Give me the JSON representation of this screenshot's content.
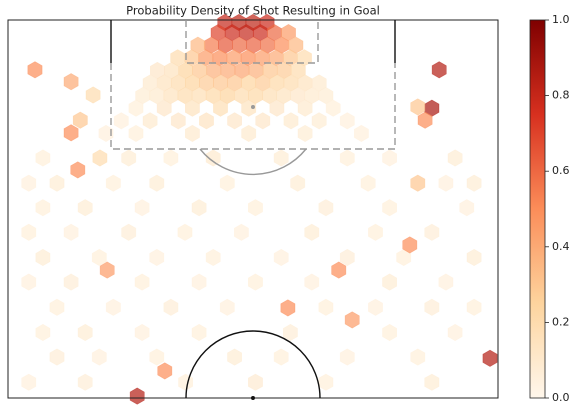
{
  "chart_data": {
    "type": "hexbin",
    "title": "Probability Density of Shot Resulting in Goal",
    "xlim": [
      0,
      80
    ],
    "ylim": [
      0,
      60
    ],
    "colorscale": [
      "#fff7ec",
      "#fdd49e",
      "#fc8d59",
      "#d7301f",
      "#7f0000"
    ],
    "clim": [
      0,
      1
    ],
    "cticks": [
      {
        "value": 0,
        "label": "0.0"
      },
      {
        "value": 0.2,
        "label": "0.2"
      },
      {
        "value": 0.4,
        "label": "0.4"
      },
      {
        "value": 0.6,
        "label": "0.6"
      },
      {
        "value": 0.8,
        "label": "0.8"
      },
      {
        "value": 1,
        "label": "1.0"
      }
    ],
    "cells": {
      "x": [
        35.4,
        37.7,
        40,
        42.3,
        34.3,
        36.6,
        38.9,
        41.2,
        43.5,
        45.8,
        33.2,
        35.5,
        37.8,
        40.1,
        42.4,
        44.7,
        47,
        31,
        30,
        32.3,
        34.6,
        36.9,
        39.2,
        41.5,
        43.8,
        46.1,
        48.4,
        27.7,
        29,
        31.3,
        33.6,
        35.9,
        38.2,
        40.5,
        42.8,
        45.1,
        47.4,
        26.7,
        24.4,
        25.5,
        27.8,
        30.1,
        32.4,
        34.7,
        37,
        39.3,
        41.6,
        43.9,
        46.2,
        48.5,
        23.2,
        50.8,
        22,
        24.3,
        26.6,
        28.9,
        31.2,
        33.5,
        35.8,
        38.1,
        40.4,
        42.7,
        45,
        47.3,
        49.6,
        51.9,
        20.9,
        25.5,
        30.1,
        34.7,
        39.3,
        43.9,
        48.5,
        53.1,
        18.5,
        23.2,
        27.8,
        32.4,
        37,
        41.6,
        46.2,
        50.8,
        55.4,
        16,
        20.9,
        30.1,
        39.3,
        48.5,
        57.7,
        5.7,
        19.7,
        26.6,
        33.5,
        44.6,
        55.4,
        62.3,
        73,
        3.4,
        8,
        17.2,
        24.3,
        35.8,
        47.3,
        58.8,
        71.5,
        76.1,
        5.7,
        12.6,
        21.9,
        31.2,
        40.4,
        51.9,
        62.3,
        74.9,
        3.4,
        10.3,
        19.7,
        28.9,
        38.1,
        49.6,
        60,
        69.2,
        5.7,
        14.9,
        24.3,
        33.5,
        44.6,
        55.4,
        64.6,
        76.1,
        3.4,
        10.3,
        21.9,
        31.2,
        40.4,
        49.6,
        62.3,
        71.5,
        8,
        17.2,
        26.6,
        35.8,
        51.9,
        60,
        69.2,
        76.1,
        5.7,
        12.6,
        21.9,
        31.2,
        46.1,
        62.3,
        73,
        8,
        14.9,
        24.3,
        37,
        44.6,
        55.4,
        66.9,
        3.4,
        12.6,
        29,
        40.4,
        51.9,
        69.2,
        4.4,
        10.3,
        70.4,
        69.2,
        68.1,
        10.3,
        11.4,
        66.9,
        65.6,
        16.2,
        54,
        45.7,
        56.2,
        25.6,
        21.1,
        78.7,
        13.9,
        15,
        66.9,
        11.8
      ],
      "y": [
        0.4,
        0.4,
        0.4,
        0.4,
        2,
        2,
        2,
        2,
        2,
        2,
        4,
        4,
        4,
        4,
        4,
        4,
        4,
        4,
        6,
        6,
        6,
        6,
        6,
        6,
        6,
        6,
        6,
        6,
        8,
        8,
        8,
        8,
        8,
        8,
        8,
        8,
        8,
        8,
        8,
        10,
        10,
        10,
        10,
        10,
        10,
        10,
        10,
        10,
        10,
        10,
        10,
        10,
        12,
        12,
        12,
        12,
        12,
        12,
        12,
        12,
        12,
        12,
        12,
        12,
        12,
        12,
        14,
        14,
        14,
        14,
        14,
        14,
        14,
        14,
        16,
        16,
        16,
        16,
        16,
        16,
        16,
        16,
        16,
        18,
        18,
        18,
        18,
        18,
        18,
        21.9,
        21.9,
        21.9,
        21.9,
        21.9,
        21.9,
        21.9,
        21.9,
        25.9,
        25.9,
        25.9,
        25.9,
        25.9,
        25.9,
        25.9,
        25.9,
        25.9,
        29.8,
        29.8,
        29.8,
        29.8,
        29.8,
        29.8,
        29.8,
        29.8,
        33.7,
        33.7,
        33.7,
        33.7,
        33.7,
        33.7,
        33.7,
        33.7,
        37.7,
        37.7,
        37.7,
        37.7,
        37.7,
        37.7,
        37.7,
        37.7,
        41.6,
        41.6,
        41.6,
        41.6,
        41.6,
        41.6,
        41.6,
        41.6,
        45.6,
        45.6,
        45.6,
        45.6,
        45.6,
        45.6,
        45.6,
        45.6,
        49.6,
        49.6,
        49.6,
        49.6,
        49.6,
        49.6,
        49.6,
        53.5,
        53.5,
        53.5,
        53.5,
        53.5,
        53.5,
        53.5,
        57.5,
        57.5,
        57.5,
        57.5,
        57.5,
        57.5,
        7.9,
        9.8,
        7.9,
        14,
        15.9,
        17.9,
        23.8,
        25.9,
        35.7,
        39.7,
        39.7,
        45.7,
        47.6,
        55.7,
        59.7,
        53.7,
        11.9,
        21.9,
        13.8,
        15.9
      ],
      "values": [
        0.8,
        0.82,
        0.82,
        0.78,
        0.7,
        0.78,
        0.8,
        0.78,
        0.6,
        0.45,
        0.55,
        0.65,
        0.6,
        0.62,
        0.58,
        0.5,
        0.35,
        0.35,
        0.3,
        0.45,
        0.5,
        0.45,
        0.5,
        0.45,
        0.4,
        0.3,
        0.2,
        0.2,
        0.25,
        0.3,
        0.38,
        0.4,
        0.42,
        0.38,
        0.3,
        0.28,
        0.2,
        0.15,
        0.12,
        0.15,
        0.2,
        0.25,
        0.28,
        0.3,
        0.3,
        0.25,
        0.28,
        0.22,
        0.2,
        0.15,
        0.1,
        0.1,
        0.08,
        0.1,
        0.15,
        0.2,
        0.18,
        0.22,
        0.25,
        0.2,
        0.22,
        0.18,
        0.15,
        0.12,
        0.1,
        0.08,
        0.06,
        0.12,
        0.15,
        0.18,
        0.15,
        0.12,
        0.1,
        0.06,
        0.05,
        0.1,
        0.12,
        0.14,
        0.12,
        0.12,
        0.1,
        0.08,
        0.05,
        0.05,
        0.06,
        0.1,
        0.1,
        0.08,
        0.05,
        0.06,
        0.08,
        0.06,
        0.1,
        0.08,
        0.06,
        0.05,
        0.08,
        0.05,
        0.08,
        0.06,
        0.08,
        0.06,
        0.08,
        0.06,
        0.05,
        0.08,
        0.06,
        0.08,
        0.05,
        0.08,
        0.06,
        0.07,
        0.06,
        0.05,
        0.06,
        0.05,
        0.07,
        0.06,
        0.05,
        0.08,
        0.06,
        0.07,
        0.08,
        0.06,
        0.05,
        0.06,
        0.05,
        0.07,
        0.06,
        0.08,
        0.05,
        0.07,
        0.06,
        0.05,
        0.06,
        0.05,
        0.08,
        0.05,
        0.06,
        0.05,
        0.07,
        0.05,
        0.06,
        0.05,
        0.07,
        0.06,
        0.06,
        0.08,
        0.05,
        0.06,
        0.07,
        0.06,
        0.05,
        0.07,
        0.05,
        0.06,
        0.08,
        0.06,
        0.05,
        0.06,
        0.05,
        0.07,
        0.06,
        0.09,
        0.06,
        0.08,
        0.5,
        0.4,
        0.85,
        0.88,
        0.5,
        0.5,
        0.5,
        0.3,
        0.5,
        0.45,
        0.5,
        0.5,
        0.45,
        0.5,
        0.85,
        0.85,
        0.2,
        0.2,
        0.3,
        0.3
      ]
    }
  }
}
